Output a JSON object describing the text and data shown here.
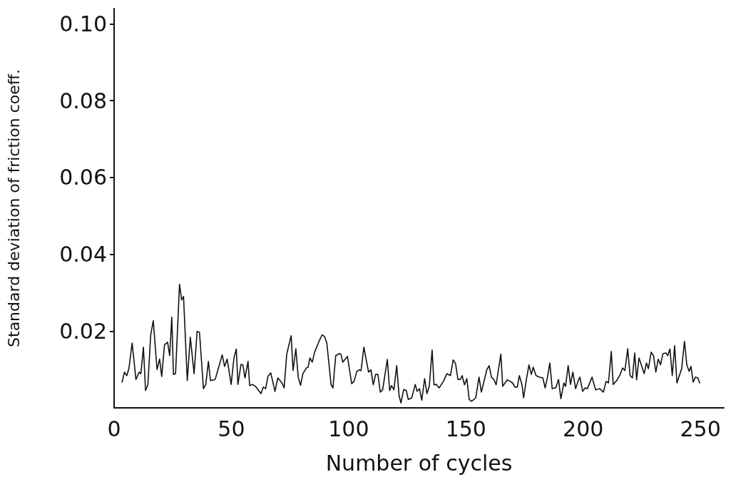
{
  "chart_data": {
    "type": "line",
    "xlabel": "Number of cycles",
    "ylabel": "Standard deviation of friction coeff.",
    "xlim": [
      0,
      260
    ],
    "ylim": [
      0,
      0.104
    ],
    "xticks": [
      0,
      50,
      100,
      150,
      200,
      250
    ],
    "yticks": [
      {
        "value": 0.02,
        "label": "0.02"
      },
      {
        "value": 0.04,
        "label": "0.04"
      },
      {
        "value": 0.06,
        "label": "0.06"
      },
      {
        "value": 0.08,
        "label": "0.08"
      },
      {
        "value": 0.1,
        "label": "0.10"
      }
    ],
    "grid": false,
    "marker": "none",
    "line_style": "solid",
    "series": [
      {
        "color": "#111111",
        "x": [
          3.4,
          4.4,
          5.4,
          6.3,
          7.7,
          9.3,
          10.7,
          11.4,
          12.5,
          13.4,
          14.4,
          15.6,
          16.7,
          18.3,
          19.4,
          20.3,
          21.5,
          22.8,
          23.7,
          24.6,
          25.3,
          26.2,
          27.9,
          28.8,
          29.6,
          31.2,
          32.5,
          34.1,
          35.4,
          36.4,
          38.1,
          39.1,
          40.2,
          41.1,
          43.1,
          46.1,
          47.1,
          48.2,
          49.9,
          51.1,
          52.1,
          52.8,
          54.1,
          54.9,
          55.8,
          57.1,
          57.8,
          59.1,
          60.6,
          62.6,
          63.6,
          64.6,
          65.6,
          66.8,
          68.6,
          69.8,
          71.6,
          72.5,
          73.6,
          75.5,
          76.3,
          77.5,
          78.5,
          79.5,
          80.5,
          82,
          82.7,
          83.5,
          84.5,
          85.5,
          87.5,
          88.7,
          89.7,
          90.7,
          92.5,
          93.3,
          94.5,
          96,
          96.7,
          97.5,
          99.5,
          101.3,
          102.3,
          103.5,
          104.5,
          105.3,
          106.5,
          107.5,
          108.5,
          109.5,
          110.5,
          111.5,
          112.5,
          113.5,
          114.5,
          116.5,
          117.5,
          118.3,
          119.3,
          120.5,
          121.5,
          122.3,
          123.5,
          124.6,
          125.4,
          126.9,
          128.4,
          129.2,
          130.2,
          131.2,
          132.4,
          133.4,
          134.4,
          135.6,
          136.4,
          137.4,
          138.6,
          140.4,
          141.9,
          143.4,
          144.6,
          145.6,
          146.6,
          147.6,
          148.4,
          149.4,
          150.4,
          151.4,
          152.4,
          154.2,
          155.6,
          156.6,
          158.9,
          159.9,
          160.9,
          161.9,
          162.9,
          164.9,
          165.7,
          167.6,
          168.9,
          169.9,
          170.9,
          171.9,
          172.8,
          173.9,
          174.6,
          175.8,
          176.9,
          177.9,
          178.7,
          179.9,
          181.4,
          182.8,
          183.8,
          184.8,
          185.8,
          186.8,
          188.3,
          189.5,
          190.5,
          191.8,
          192.5,
          193.6,
          194.6,
          195.6,
          196.8,
          197.8,
          198.6,
          199.8,
          200.8,
          201.8,
          203.8,
          205.3,
          207.1,
          208.6,
          209.8,
          210.8,
          212,
          212.8,
          214.3,
          215.8,
          216.8,
          217.8,
          219,
          220,
          221,
          222,
          222.8,
          223.8,
          224.8,
          226,
          227,
          227.8,
          229,
          230,
          231,
          232,
          233,
          234,
          235.3,
          236.1,
          237,
          238,
          239,
          240,
          242,
          243.2,
          244.2,
          245.2,
          246,
          246.9,
          247.9,
          248.9,
          249.7
        ],
        "values": [
          0.0067,
          0.0093,
          0.0084,
          0.0102,
          0.0169,
          0.0074,
          0.0093,
          0.0089,
          0.0158,
          0.0045,
          0.006,
          0.019,
          0.0227,
          0.01,
          0.0127,
          0.0082,
          0.0164,
          0.0171,
          0.0136,
          0.0236,
          0.0087,
          0.0089,
          0.0322,
          0.0281,
          0.029,
          0.0071,
          0.0184,
          0.0089,
          0.0199,
          0.0197,
          0.005,
          0.0061,
          0.0121,
          0.0071,
          0.0074,
          0.0138,
          0.0108,
          0.0127,
          0.0061,
          0.013,
          0.0153,
          0.0061,
          0.0113,
          0.0112,
          0.0078,
          0.0121,
          0.0058,
          0.0061,
          0.0054,
          0.0037,
          0.0054,
          0.005,
          0.0082,
          0.0091,
          0.0043,
          0.0078,
          0.0065,
          0.0052,
          0.014,
          0.0188,
          0.0097,
          0.0154,
          0.008,
          0.0059,
          0.0089,
          0.0104,
          0.0106,
          0.013,
          0.0119,
          0.0145,
          0.0175,
          0.019,
          0.0186,
          0.0169,
          0.0061,
          0.0052,
          0.0136,
          0.0141,
          0.014,
          0.0119,
          0.0134,
          0.0063,
          0.0069,
          0.0095,
          0.0099,
          0.0097,
          0.0158,
          0.0125,
          0.0093,
          0.0099,
          0.006,
          0.0087,
          0.0087,
          0.0041,
          0.0047,
          0.0126,
          0.0045,
          0.0058,
          0.0047,
          0.011,
          0.0032,
          0.0013,
          0.0048,
          0.0045,
          0.0022,
          0.0026,
          0.0061,
          0.0043,
          0.005,
          0.002,
          0.0076,
          0.0037,
          0.0056,
          0.0151,
          0.006,
          0.0061,
          0.0052,
          0.0069,
          0.0089,
          0.0084,
          0.0125,
          0.0115,
          0.0074,
          0.0074,
          0.0084,
          0.006,
          0.0076,
          0.0022,
          0.0017,
          0.0026,
          0.008,
          0.0041,
          0.0099,
          0.011,
          0.008,
          0.0074,
          0.006,
          0.014,
          0.0056,
          0.0073,
          0.0069,
          0.0065,
          0.0054,
          0.0054,
          0.0084,
          0.0061,
          0.0026,
          0.0074,
          0.0112,
          0.0087,
          0.0106,
          0.0084,
          0.008,
          0.0078,
          0.0052,
          0.008,
          0.0117,
          0.005,
          0.0052,
          0.0074,
          0.0024,
          0.0065,
          0.0056,
          0.011,
          0.0061,
          0.0093,
          0.005,
          0.0069,
          0.008,
          0.0043,
          0.0052,
          0.005,
          0.008,
          0.0047,
          0.005,
          0.0041,
          0.0069,
          0.0065,
          0.0147,
          0.0061,
          0.0071,
          0.0087,
          0.0104,
          0.0097,
          0.0154,
          0.0084,
          0.0078,
          0.0143,
          0.0073,
          0.013,
          0.0112,
          0.0089,
          0.0117,
          0.0102,
          0.0145,
          0.0136,
          0.0093,
          0.0127,
          0.0112,
          0.0141,
          0.0143,
          0.0136,
          0.0153,
          0.0084,
          0.0162,
          0.0065,
          0.0102,
          0.0173,
          0.0112,
          0.0095,
          0.0108,
          0.0067,
          0.008,
          0.0078,
          0.0065
        ]
      }
    ]
  }
}
